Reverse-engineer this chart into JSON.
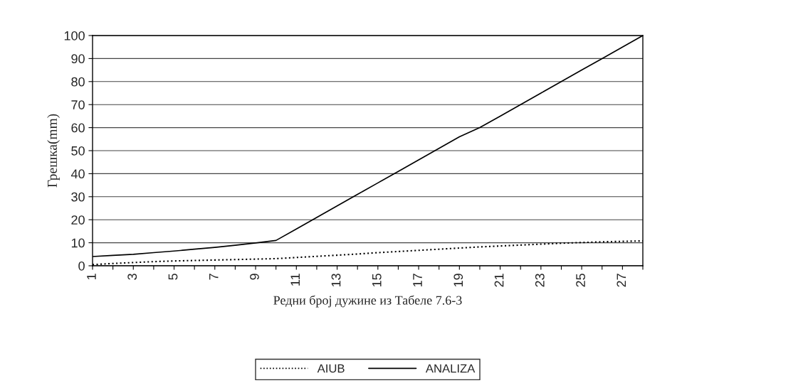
{
  "chart_data": {
    "type": "line",
    "xlabel": "Редни број дужине из Табеле 7.6-3",
    "ylabel": "Грешка(mm)",
    "categories": [
      "1",
      null,
      "3",
      null,
      "5",
      null,
      "7",
      null,
      "9",
      null,
      "11",
      null,
      "13",
      null,
      "15",
      null,
      "17",
      null,
      "19",
      null,
      "21",
      null,
      "23",
      null,
      "25",
      null,
      "27",
      null
    ],
    "series": [
      {
        "name": "AIUB",
        "color": "#000000",
        "line_style": "dotted",
        "values": [
          0.5,
          1,
          1.4,
          1.8,
          2.1,
          2.3,
          2.5,
          2.7,
          2.9,
          3.1,
          3.6,
          4.1,
          4.6,
          5.1,
          5.7,
          6.2,
          6.7,
          7.2,
          7.7,
          8.2,
          8.6,
          9,
          9.4,
          9.8,
          10.1,
          10.4,
          10.6,
          10.8
        ]
      },
      {
        "name": "ANALIZA",
        "color": "#000000",
        "line_style": "solid",
        "values": [
          4,
          4.5,
          5,
          5.7,
          6.4,
          7.2,
          8,
          8.9,
          9.9,
          11,
          16,
          21,
          26,
          31,
          36,
          41,
          46,
          51,
          56,
          60,
          65,
          70,
          75,
          80,
          85,
          90,
          95,
          100
        ]
      }
    ],
    "ylim": [
      0,
      100
    ],
    "yticks": [
      0,
      10,
      20,
      30,
      40,
      50,
      60,
      70,
      80,
      90,
      100
    ],
    "grid": "y",
    "legend": "bottom",
    "marker": "none"
  }
}
